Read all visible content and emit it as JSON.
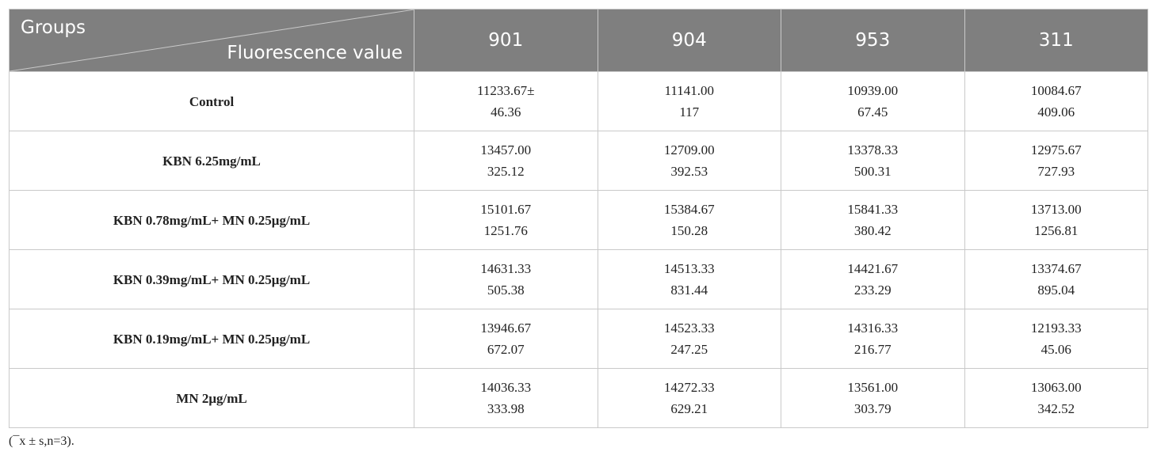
{
  "table": {
    "header": {
      "groups": "Groups",
      "measure": "Fluorescence value",
      "columns": [
        "901",
        "904",
        "953",
        "311"
      ]
    },
    "rows": [
      {
        "group": "Control",
        "cells": [
          [
            "11233.67±",
            "46.36"
          ],
          [
            "11141.00",
            "117"
          ],
          [
            "10939.00",
            "67.45"
          ],
          [
            "10084.67",
            "409.06"
          ]
        ]
      },
      {
        "group": "KBN 6.25mg/mL",
        "cells": [
          [
            "13457.00",
            "325.12"
          ],
          [
            "12709.00",
            "392.53"
          ],
          [
            "13378.33",
            "500.31"
          ],
          [
            "12975.67",
            "727.93"
          ]
        ]
      },
      {
        "group": "KBN 0.78mg/mL+ MN 0.25μg/mL",
        "cells": [
          [
            "15101.67",
            "1251.76"
          ],
          [
            "15384.67",
            "150.28"
          ],
          [
            "15841.33",
            "380.42"
          ],
          [
            "13713.00",
            "1256.81"
          ]
        ]
      },
      {
        "group": "KBN 0.39mg/mL+ MN 0.25μg/mL",
        "cells": [
          [
            "14631.33",
            "505.38"
          ],
          [
            "14513.33",
            "831.44"
          ],
          [
            "14421.67",
            "233.29"
          ],
          [
            "13374.67",
            "895.04"
          ]
        ]
      },
      {
        "group": "KBN 0.19mg/mL+ MN 0.25μg/mL",
        "cells": [
          [
            "13946.67",
            "672.07"
          ],
          [
            "14523.33",
            "247.25"
          ],
          [
            "14316.33",
            "216.77"
          ],
          [
            "12193.33",
            "45.06"
          ]
        ]
      },
      {
        "group": "MN 2μg/mL",
        "cells": [
          [
            "14036.33",
            "333.98"
          ],
          [
            "14272.33",
            "629.21"
          ],
          [
            "13561.00",
            "303.79"
          ],
          [
            "13063.00",
            "342.52"
          ]
        ]
      }
    ]
  },
  "footnote": "(¯x ± s,n=3)."
}
